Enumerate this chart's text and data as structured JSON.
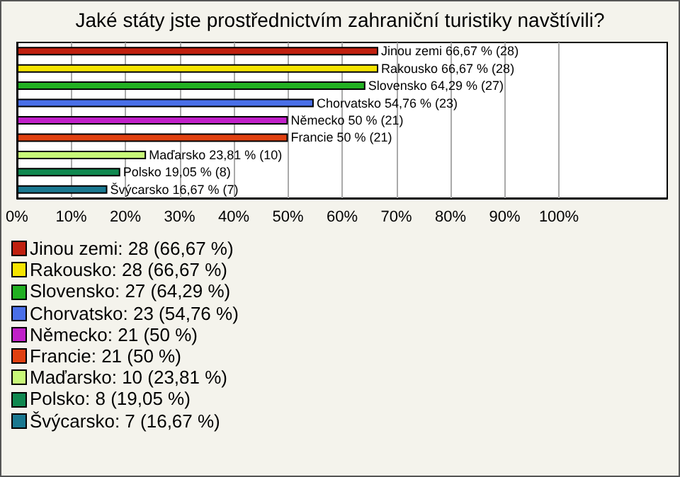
{
  "chart_data": {
    "type": "bar",
    "orientation": "horizontal",
    "title": "Jaké státy jste prostřednictvím zahraniční turistiky navštívili?",
    "categories": [
      null,
      null,
      null,
      null,
      null,
      null,
      null,
      null,
      null
    ],
    "values": [
      66.67,
      66.67,
      64.29,
      54.76,
      50,
      50,
      23.81,
      19.05,
      16.67
    ],
    "colors": [
      "#c0200f",
      "#f5e400",
      "#22b022",
      "#4a6fe8",
      "#c020c8",
      "#e04010",
      "#c8f878",
      "#108850",
      "#1a7890"
    ],
    "value_labels": [
      "Jinou zemi 66,67 % (28)",
      "Rakousko 66,67 % (28)",
      "Slovensko 64,29 % (27)",
      "Chorvatsko 54,76 % (23)",
      "Německo 50 % (21)",
      "Francie 50 % (21)",
      "Maďarsko 23,81 % (10)",
      "Polsko 19,05 % (8)",
      "Švýcarsko 16,67 % (7)"
    ],
    "xlim": [
      0,
      120
    ],
    "xticks": [
      {
        "value": 0,
        "label": "0%"
      },
      {
        "value": 10,
        "label": "10%"
      },
      {
        "value": 20,
        "label": "20%"
      },
      {
        "value": 30,
        "label": "30%"
      },
      {
        "value": 40,
        "label": "40%"
      },
      {
        "value": 50,
        "label": "50%"
      },
      {
        "value": 60,
        "label": "60%"
      },
      {
        "value": 70,
        "label": "70%"
      },
      {
        "value": 80,
        "label": "80%"
      },
      {
        "value": 90,
        "label": "90%"
      },
      {
        "value": 100,
        "label": "100%"
      }
    ],
    "grid": "x",
    "annotations": [
      "Jinou zemi: 28 (66,67 %)",
      "Rakousko: 28 (66,67 %)",
      "Slovensko: 27 (64,29 %)",
      "Chorvatsko: 23 (54,76 %)",
      "Německo: 21 (50 %)",
      "Francie: 21 (50 %)",
      "Maďarsko: 10 (23,81 %)",
      "Polsko: 8 (19,05 %)",
      "Švýcarsko: 7 (16,67 %)"
    ]
  }
}
